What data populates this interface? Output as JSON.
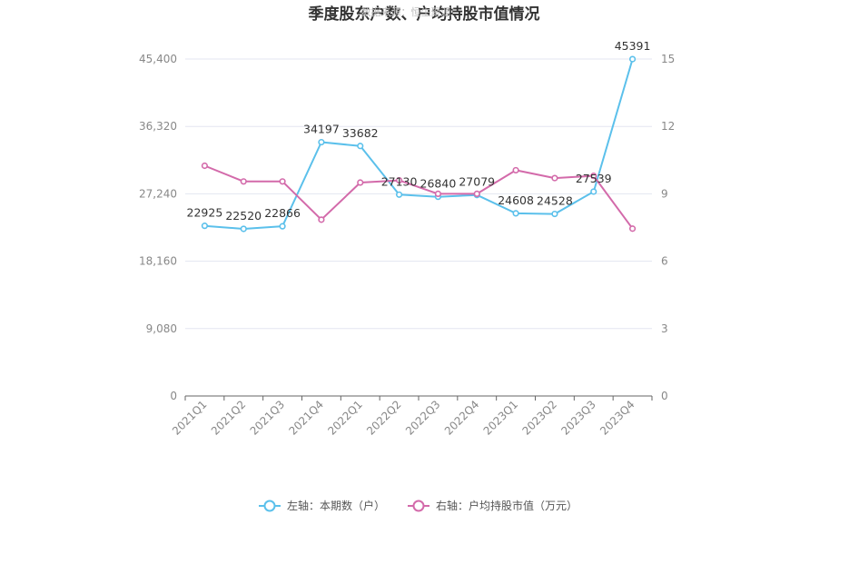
{
  "colors": {
    "left_series": "#5bc0eb",
    "right_series": "#d36aaa",
    "grid": "#e3e6f0",
    "axis": "#666666"
  },
  "chart_data": {
    "type": "line",
    "title": "季度股东户数、户均持股市值情况",
    "watermark": "数据来源：恒生聚源",
    "categories": [
      "2021Q1",
      "2021Q2",
      "2021Q3",
      "2021Q4",
      "2022Q1",
      "2022Q2",
      "2022Q3",
      "2022Q4",
      "2023Q1",
      "2023Q2",
      "2023Q3",
      "2023Q4"
    ],
    "left_axis": {
      "ylim": [
        0,
        45400
      ],
      "ticks": [
        0,
        9080,
        18160,
        27240,
        36320,
        45400
      ],
      "tick_labels": [
        "0",
        "9,080",
        "18,160",
        "27,240",
        "36,320",
        "45,400"
      ]
    },
    "right_axis": {
      "ylim": [
        0,
        15
      ],
      "ticks": [
        0,
        3,
        6,
        9,
        12,
        15
      ],
      "tick_labels": [
        "0",
        "3",
        "6",
        "9",
        "12",
        "15"
      ]
    },
    "grid": true,
    "legend_position": "bottom-center",
    "series": [
      {
        "name": "左轴：本期数（户）",
        "axis": "left",
        "values": [
          22925,
          22520,
          22866,
          34197,
          33682,
          27130,
          26840,
          27079,
          24608,
          24528,
          27539,
          45391
        ],
        "labels": [
          "22925",
          "22520",
          "22866",
          "34197",
          "33682",
          "27130",
          "26840",
          "27079",
          "24608",
          "24528",
          "27539",
          "45391"
        ]
      },
      {
        "name": "右轴：户均持股市值（万元）",
        "axis": "right",
        "values": [
          10.25,
          9.55,
          9.55,
          7.85,
          9.5,
          9.6,
          9.0,
          9.0,
          10.05,
          9.7,
          9.8,
          7.45
        ]
      }
    ]
  }
}
